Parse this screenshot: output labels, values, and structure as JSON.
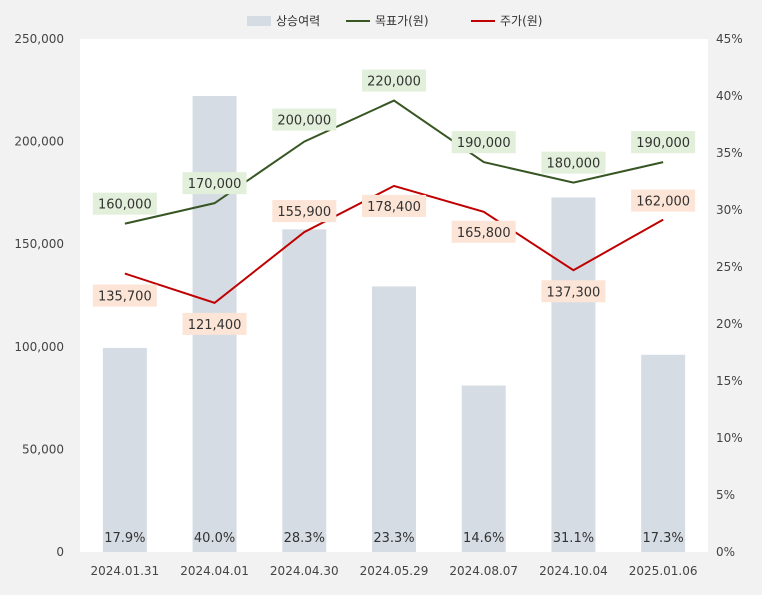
{
  "chart_data": {
    "type": "bar+line",
    "categories": [
      "2024.01.31",
      "2024.04.01",
      "2024.04.30",
      "2024.05.29",
      "2024.08.07",
      "2024.10.04",
      "2025.01.06"
    ],
    "series": [
      {
        "name": "상승여력",
        "kind": "bar",
        "axis": "right",
        "values": [
          17.9,
          40.0,
          28.3,
          23.3,
          14.6,
          31.1,
          17.3
        ],
        "labels": [
          "17.9%",
          "40.0%",
          "28.3%",
          "23.3%",
          "14.6%",
          "31.1%",
          "17.3%"
        ],
        "color": "#d6dce4"
      },
      {
        "name": "목표가(원)",
        "kind": "line",
        "axis": "left",
        "values": [
          160000,
          170000,
          200000,
          220000,
          190000,
          180000,
          190000
        ],
        "labels": [
          "160,000",
          "170,000",
          "200,000",
          "220,000",
          "190,000",
          "180,000",
          "190,000"
        ],
        "color": "#375623",
        "label_bg": "#e2efda"
      },
      {
        "name": "주가(원)",
        "kind": "line",
        "axis": "left",
        "values": [
          135700,
          121400,
          155900,
          178400,
          165800,
          137300,
          162000
        ],
        "labels": [
          "135,700",
          "121,400",
          "155,900",
          "178,400",
          "165,800",
          "137,300",
          "162,000"
        ],
        "color": "#c00000",
        "label_bg": "#fce4d6"
      }
    ],
    "left_axis": {
      "min": 0,
      "max": 250000,
      "ticks": [
        "0",
        "50,000",
        "100,000",
        "150,000",
        "200,000",
        "250,000"
      ]
    },
    "right_axis": {
      "min": 0,
      "max": 45,
      "ticks": [
        "0%",
        "5%",
        "10%",
        "15%",
        "20%",
        "25%",
        "30%",
        "35%",
        "40%",
        "45%"
      ]
    },
    "grid": false,
    "legend_position": "top"
  }
}
